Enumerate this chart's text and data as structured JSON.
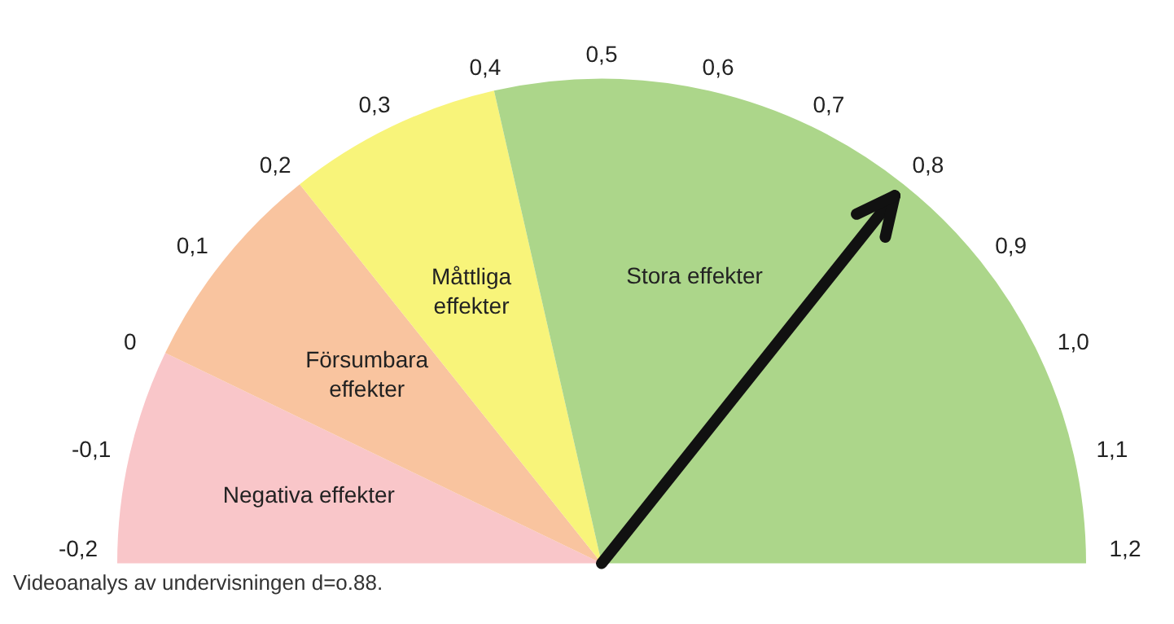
{
  "chart_data": {
    "type": "pie",
    "categories": [
      "Negativa effekter",
      "Försumbara effekter",
      "Måttliga effekter",
      "Stora effekter"
    ],
    "values": [
      14.29,
      14.29,
      14.29,
      57.13
    ],
    "colors": [
      "#f9c6c9",
      "#f9c49f",
      "#f8f47a",
      "#acd68a"
    ],
    "needle": "Stora effekter",
    "annotations": [
      "-0,2",
      "-0,1",
      "0",
      "0,1",
      "0,2",
      "0,3",
      "0,4",
      "0,5",
      "0,6",
      "0,7",
      "0,8",
      "0,9",
      "1,0",
      "1,1",
      "1,2",
      "Videoanalys av undervisningen d=o.88."
    ]
  }
}
